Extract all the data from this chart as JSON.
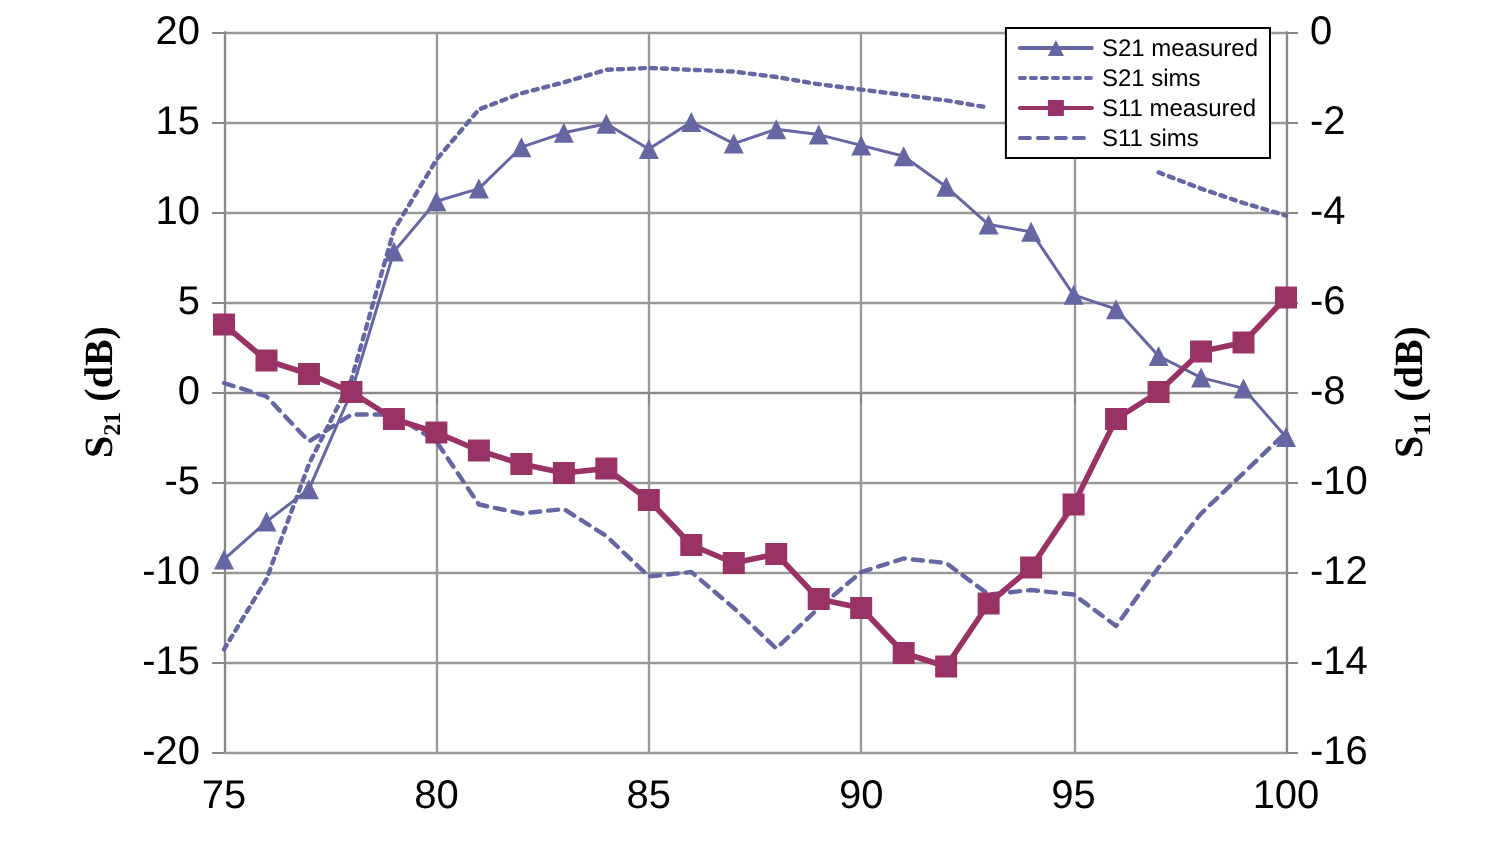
{
  "chart_data": {
    "type": "line",
    "ylabel": "S₂₁ (dB)",
    "y2label": "S₁₁ (dB)",
    "x": [
      75,
      76,
      77,
      78,
      79,
      80,
      81,
      82,
      83,
      84,
      85,
      86,
      87,
      88,
      89,
      90,
      91,
      92,
      93,
      94,
      95,
      96,
      97,
      98,
      99,
      100
    ],
    "xlim": [
      75,
      100
    ],
    "xticks": [
      75,
      80,
      85,
      90,
      95,
      100
    ],
    "ylim": [
      -20,
      20
    ],
    "yticks": [
      -20,
      -15,
      -10,
      -5,
      0,
      5,
      10,
      15,
      20
    ],
    "y2lim": [
      -16,
      0
    ],
    "y2ticks": [
      -16,
      -14,
      -12,
      -10,
      -8,
      -6,
      -4,
      -2,
      0
    ],
    "grid": true,
    "legend": "top right",
    "series": [
      {
        "name": "S21 measured",
        "color": "#6666a3",
        "marker": "triangle",
        "line_style": "solid",
        "values": [
          -9.3,
          -7.2,
          -5.4,
          0,
          7.8,
          10.6,
          11.3,
          13.6,
          14.4,
          14.9,
          13.5,
          15.0,
          13.8,
          14.6,
          14.3,
          13.7,
          13.1,
          11.4,
          9.3,
          8.9,
          5.4,
          4.6,
          2.0,
          0.8,
          0.2,
          -2.5
        ]
      },
      {
        "name": "S21 sims",
        "color": "#6666a3",
        "marker": "none",
        "line_style": "dotted",
        "values": [
          -14.3,
          -10.4,
          -4,
          0.7,
          9,
          12.9,
          15.7,
          16.6,
          17.2,
          17.9,
          18,
          17.9,
          17.8,
          17.5,
          17.1,
          16.8,
          16.5,
          16.2,
          15.8,
          null,
          null,
          null,
          12.2,
          11.3,
          10.5,
          9.8
        ]
      },
      {
        "name": "S11 measured",
        "color": "#993366",
        "marker": "square",
        "line_style": "solid",
        "axis": "y2",
        "values": [
          -6.5,
          -7.3,
          -7.6,
          -8.0,
          -8.6,
          -8.9,
          -9.3,
          -9.6,
          -9.8,
          -9.7,
          -10.4,
          -11.4,
          -11.8,
          -11.6,
          -12.6,
          -12.8,
          -13.8,
          -14.1,
          -12.7,
          -11.9,
          -10.5,
          -8.6,
          -8.0,
          -7.1,
          -6.9,
          -5.9
        ]
      },
      {
        "name": "S11 sims",
        "color": "#6666a3",
        "marker": "none",
        "line_style": "dashed",
        "axis": "y2",
        "values": [
          -7.8,
          -8.1,
          -9.1,
          -8.5,
          -8.5,
          -9.1,
          -10.5,
          -10.7,
          -10.6,
          -11.2,
          -12.1,
          -12.0,
          -12.8,
          -13.7,
          -12.8,
          -12.0,
          -11.7,
          -11.8,
          -12.5,
          -12.4,
          -12.5,
          -13.2,
          -11.9,
          -10.7,
          -9.8,
          -8.9
        ]
      }
    ]
  }
}
